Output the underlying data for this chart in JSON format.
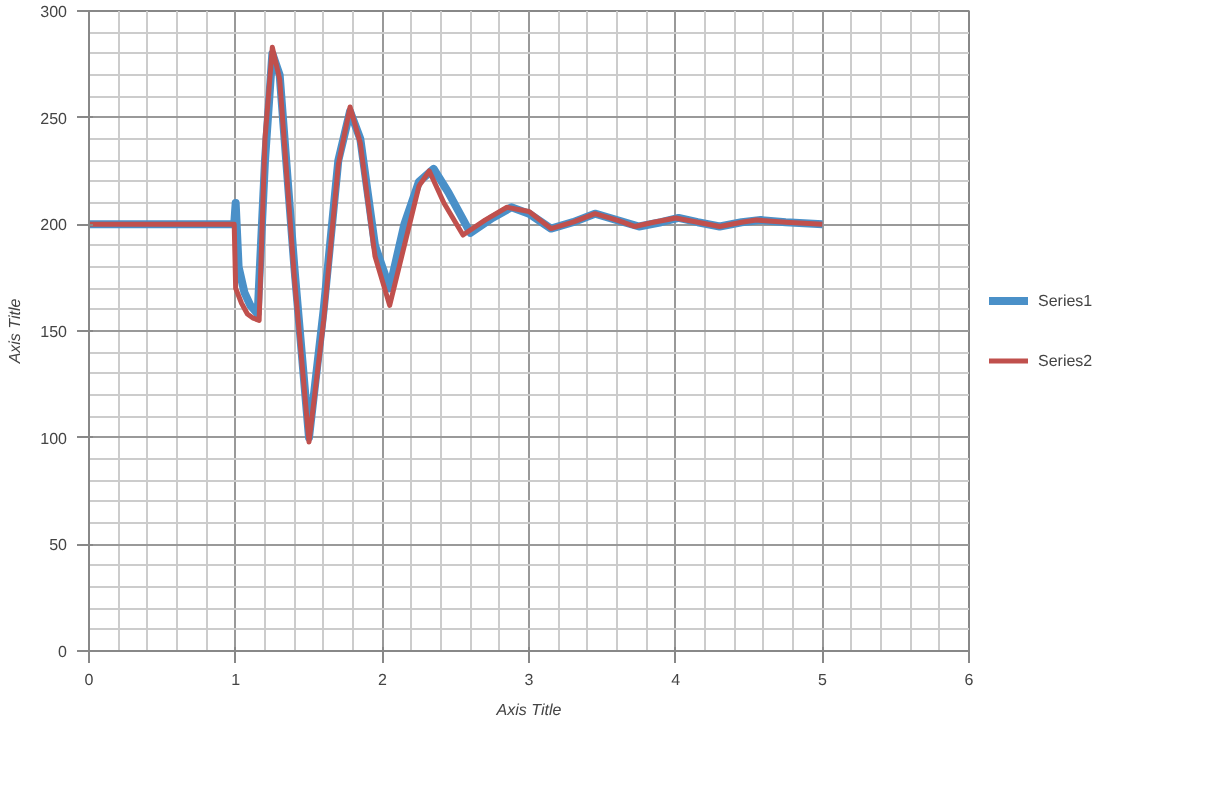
{
  "chart_data": {
    "type": "line",
    "xlabel": "Axis Title",
    "ylabel": "Axis Title",
    "xlim": [
      0,
      6
    ],
    "xticks": [
      0,
      1,
      2,
      3,
      4,
      5,
      6
    ],
    "ylim": [
      0,
      300
    ],
    "yticks": [
      0,
      50,
      100,
      150,
      200,
      250,
      300
    ],
    "grid": true,
    "legend": "right",
    "marker": "none",
    "line_style": "solid",
    "series": [
      {
        "name": "Series1",
        "color": "#4a90c8",
        "x": [
          0,
          0.5,
          0.99,
          1.0,
          1.02,
          1.06,
          1.1,
          1.15,
          1.2,
          1.25,
          1.3,
          1.4,
          1.5,
          1.6,
          1.7,
          1.78,
          1.85,
          1.95,
          2.05,
          2.15,
          2.25,
          2.35,
          2.45,
          2.6,
          2.75,
          2.88,
          3.0,
          3.15,
          3.3,
          3.45,
          3.6,
          3.75,
          3.9,
          4.02,
          4.15,
          4.3,
          4.45,
          4.58,
          4.75,
          5.0
        ],
        "values": [
          200,
          200,
          200,
          210,
          180,
          168,
          162,
          158,
          230,
          280,
          270,
          180,
          100,
          160,
          230,
          253,
          240,
          190,
          170,
          200,
          220,
          226,
          215,
          196,
          203,
          208,
          205,
          198,
          201,
          205,
          202,
          199,
          201,
          203,
          201,
          199,
          201,
          202,
          201,
          200
        ]
      },
      {
        "name": "Series2",
        "color": "#c0504d",
        "x": [
          0,
          0.5,
          0.99,
          1.0,
          1.04,
          1.08,
          1.12,
          1.16,
          1.2,
          1.25,
          1.3,
          1.4,
          1.5,
          1.6,
          1.7,
          1.78,
          1.85,
          1.95,
          2.05,
          2.15,
          2.25,
          2.32,
          2.42,
          2.55,
          2.7,
          2.85,
          3.0,
          3.15,
          3.3,
          3.45,
          3.6,
          3.72,
          3.85,
          4.0,
          4.15,
          4.3,
          4.45,
          4.55,
          4.75,
          5.0
        ],
        "values": [
          200,
          200,
          200,
          170,
          163,
          158,
          156,
          155,
          240,
          283,
          268,
          175,
          98,
          155,
          228,
          255,
          238,
          185,
          162,
          190,
          218,
          225,
          210,
          195,
          202,
          208,
          206,
          198,
          201,
          205,
          202,
          199,
          201,
          203,
          201,
          199,
          201,
          202,
          201,
          200
        ]
      }
    ]
  }
}
